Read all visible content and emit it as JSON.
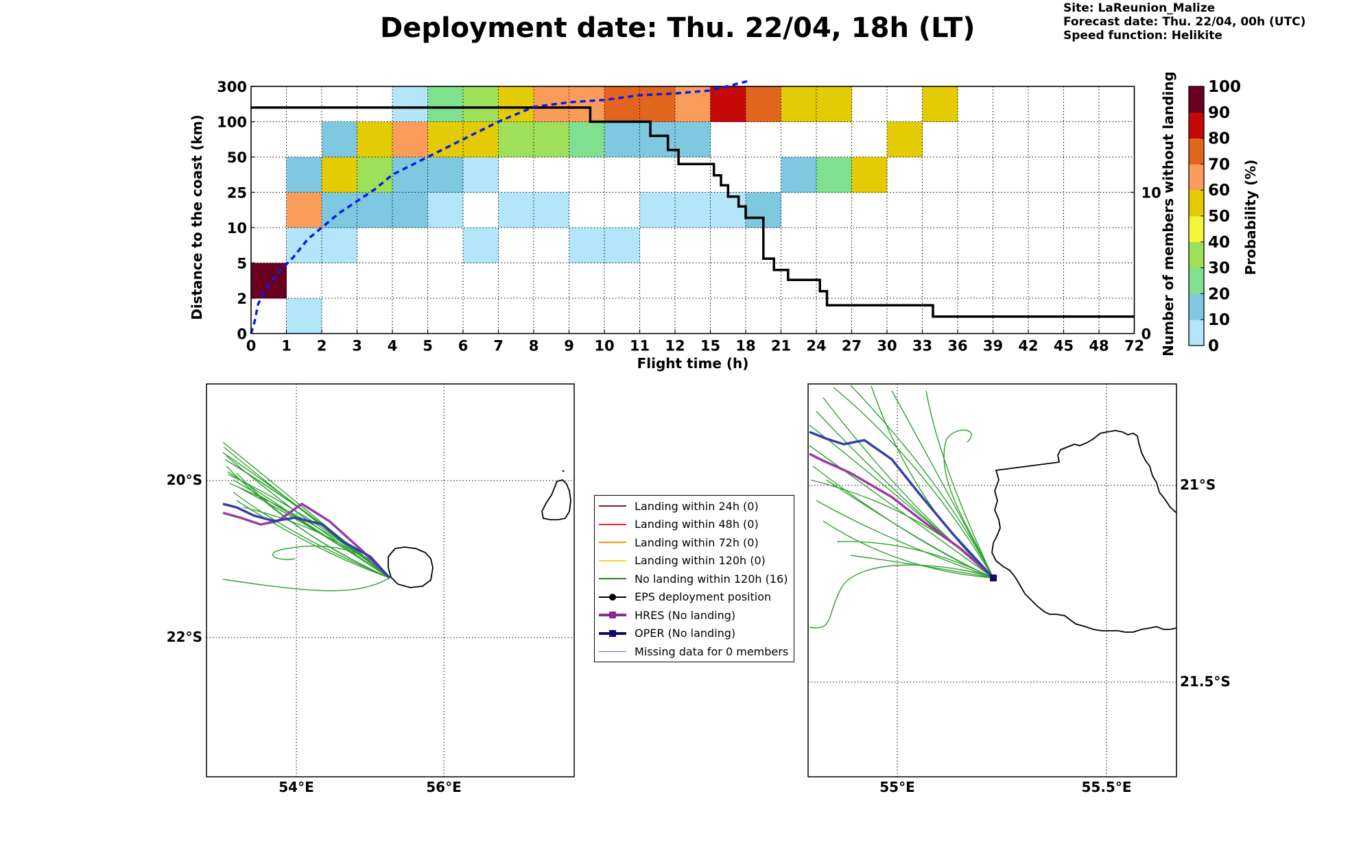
{
  "title": "Deployment date: Thu. 22/04, 18h (LT)",
  "info": {
    "site": "Site: LaReunion_Malize",
    "forecast": "Forecast date: Thu. 22/04, 00h (UTC)",
    "speed": "Speed function: Helikite"
  },
  "colorbar": {
    "label": "Probability (%)",
    "ticks": [
      "0",
      "10",
      "20",
      "30",
      "40",
      "50",
      "60",
      "70",
      "80",
      "90",
      "100"
    ],
    "colors": [
      "#b3e5fb",
      "#7ec8e0",
      "#7fe08f",
      "#9ee05a",
      "#f5f53a",
      "#e3cb05",
      "#fb9d5a",
      "#e2651e",
      "#c40808",
      "#6a0020"
    ]
  },
  "legend": {
    "items": [
      {
        "label": "Landing within 24h (0)",
        "color": "#8b1a1a",
        "type": "line"
      },
      {
        "label": "Landing within 48h (0)",
        "color": "#ff2020",
        "type": "line"
      },
      {
        "label": "Landing within 72h (0)",
        "color": "#ff8c1a",
        "type": "line"
      },
      {
        "label": "Landing within 120h (0)",
        "color": "#f2d42a",
        "type": "line"
      },
      {
        "label": "No landing within 120h (16)",
        "color": "#1f7f1f",
        "type": "line"
      },
      {
        "label": "EPS deployment position",
        "color": "#000000",
        "type": "dot"
      },
      {
        "label": "HRES (No landing)",
        "color": "#8a2a94",
        "type": "square"
      },
      {
        "label": "OPER (No landing)",
        "color": "#0d0d6e",
        "type": "square"
      },
      {
        "label": "Missing data for 0 members",
        "color": "#5865f0",
        "type": "thin"
      }
    ]
  },
  "chart_data": [
    {
      "type": "heatmap",
      "title": "",
      "xlabel": "Flight time (h)",
      "ylabel": "Distance to the coast (km)",
      "y2label": "Number of members without landing",
      "x_ticks": [
        "0",
        "1",
        "2",
        "3",
        "4",
        "5",
        "6",
        "7",
        "8",
        "9",
        "10",
        "11",
        "12",
        "15",
        "18",
        "21",
        "24",
        "27",
        "30",
        "33",
        "36",
        "39",
        "42",
        "45",
        "48",
        "72"
      ],
      "y_ticks": [
        "0",
        "2",
        "5",
        "10",
        "25",
        "50",
        "100",
        "300"
      ],
      "y2_ticks": [
        "0",
        "10"
      ],
      "y2_range": [
        0,
        17.5
      ],
      "cells_note": "Probability (%) per flight-time bin (column index) and distance bin (row index 0 = 0-2 km ... 6 = 100-300 km)",
      "cells": [
        {
          "col": 0,
          "row": 1,
          "p": 95
        },
        {
          "col": 1,
          "row": 0,
          "p": 5
        },
        {
          "col": 1,
          "row": 2,
          "p": 5
        },
        {
          "col": 2,
          "row": 2,
          "p": 5
        },
        {
          "col": 1,
          "row": 3,
          "p": 65
        },
        {
          "col": 2,
          "row": 3,
          "p": 15
        },
        {
          "col": 3,
          "row": 3,
          "p": 15
        },
        {
          "col": 4,
          "row": 3,
          "p": 15
        },
        {
          "col": 5,
          "row": 3,
          "p": 5
        },
        {
          "col": 7,
          "row": 3,
          "p": 5
        },
        {
          "col": 8,
          "row": 3,
          "p": 5
        },
        {
          "col": 11,
          "row": 3,
          "p": 5
        },
        {
          "col": 12,
          "row": 3,
          "p": 5
        },
        {
          "col": 13,
          "row": 3,
          "p": 5
        },
        {
          "col": 14,
          "row": 3,
          "p": 15
        },
        {
          "col": 6,
          "row": 2,
          "p": 5
        },
        {
          "col": 9,
          "row": 2,
          "p": 5
        },
        {
          "col": 10,
          "row": 2,
          "p": 5
        },
        {
          "col": 1,
          "row": 4,
          "p": 15
        },
        {
          "col": 2,
          "row": 4,
          "p": 55
        },
        {
          "col": 3,
          "row": 4,
          "p": 35
        },
        {
          "col": 4,
          "row": 4,
          "p": 15
        },
        {
          "col": 5,
          "row": 4,
          "p": 15
        },
        {
          "col": 6,
          "row": 4,
          "p": 5
        },
        {
          "col": 15,
          "row": 4,
          "p": 15
        },
        {
          "col": 16,
          "row": 4,
          "p": 25
        },
        {
          "col": 17,
          "row": 4,
          "p": 55
        },
        {
          "col": 2,
          "row": 5,
          "p": 15
        },
        {
          "col": 3,
          "row": 5,
          "p": 55
        },
        {
          "col": 4,
          "row": 5,
          "p": 65
        },
        {
          "col": 5,
          "row": 5,
          "p": 55
        },
        {
          "col": 6,
          "row": 5,
          "p": 55
        },
        {
          "col": 7,
          "row": 5,
          "p": 35
        },
        {
          "col": 8,
          "row": 5,
          "p": 35
        },
        {
          "col": 9,
          "row": 5,
          "p": 25
        },
        {
          "col": 10,
          "row": 5,
          "p": 15
        },
        {
          "col": 11,
          "row": 5,
          "p": 15
        },
        {
          "col": 12,
          "row": 5,
          "p": 15
        },
        {
          "col": 18,
          "row": 5,
          "p": 55
        },
        {
          "col": 4,
          "row": 6,
          "p": 5
        },
        {
          "col": 5,
          "row": 6,
          "p": 25
        },
        {
          "col": 6,
          "row": 6,
          "p": 35
        },
        {
          "col": 7,
          "row": 6,
          "p": 55
        },
        {
          "col": 8,
          "row": 6,
          "p": 65
        },
        {
          "col": 9,
          "row": 6,
          "p": 65
        },
        {
          "col": 10,
          "row": 6,
          "p": 75
        },
        {
          "col": 11,
          "row": 6,
          "p": 75
        },
        {
          "col": 12,
          "row": 6,
          "p": 65
        },
        {
          "col": 13,
          "row": 6,
          "p": 85
        },
        {
          "col": 14,
          "row": 6,
          "p": 75
        },
        {
          "col": 15,
          "row": 6,
          "p": 55
        },
        {
          "col": 16,
          "row": 6,
          "p": 55
        },
        {
          "col": 19,
          "row": 6,
          "p": 55
        }
      ],
      "members_step": [
        [
          0,
          16
        ],
        [
          9.6,
          16
        ],
        [
          9.6,
          15
        ],
        [
          11.3,
          15
        ],
        [
          11.3,
          14
        ],
        [
          11.8,
          14
        ],
        [
          11.8,
          13
        ],
        [
          12.1,
          13
        ],
        [
          12.1,
          12
        ],
        [
          13.1,
          12
        ],
        [
          13.1,
          11.2
        ],
        [
          13.3,
          11.2
        ],
        [
          13.3,
          10.5
        ],
        [
          13.5,
          10.5
        ],
        [
          13.5,
          9.7
        ],
        [
          13.8,
          9.7
        ],
        [
          13.8,
          9
        ],
        [
          14,
          9
        ],
        [
          14,
          8.2
        ],
        [
          14.5,
          8.2
        ],
        [
          14.5,
          5.3
        ],
        [
          14.8,
          5.3
        ],
        [
          14.8,
          4.5
        ],
        [
          15.2,
          4.5
        ],
        [
          15.2,
          3.8
        ],
        [
          16.1,
          3.8
        ],
        [
          16.1,
          3
        ],
        [
          16.3,
          3
        ],
        [
          16.3,
          2
        ],
        [
          19.3,
          2
        ],
        [
          19.3,
          1.2
        ],
        [
          25,
          1.2
        ]
      ],
      "median_distance": [
        [
          0,
          0
        ],
        [
          0.1,
          2
        ],
        [
          0.2,
          5
        ],
        [
          0.4,
          7.5
        ],
        [
          0.8,
          10.5
        ],
        [
          1.2,
          13
        ],
        [
          1.6,
          16
        ],
        [
          2,
          18
        ],
        [
          2.5,
          20.5
        ],
        [
          3,
          22.5
        ],
        [
          3.5,
          24.5
        ],
        [
          4,
          27
        ],
        [
          5,
          30
        ],
        [
          6,
          33
        ],
        [
          7,
          36
        ],
        [
          8,
          38.5
        ],
        [
          9,
          39.3
        ],
        [
          10,
          39.7
        ],
        [
          11,
          40.5
        ],
        [
          12,
          40.8
        ],
        [
          13,
          41.3
        ],
        [
          14,
          42.8
        ],
        [
          14.1,
          42.9
        ]
      ]
    },
    {
      "type": "map",
      "lat_ticks": [
        "20°S",
        "22°S"
      ],
      "lon_ticks": [
        "54°E",
        "56°E"
      ]
    },
    {
      "type": "map",
      "lat_ticks": [
        "21°S",
        "21.5°S"
      ],
      "lon_ticks": [
        "55°E",
        "55.5°E"
      ]
    }
  ]
}
